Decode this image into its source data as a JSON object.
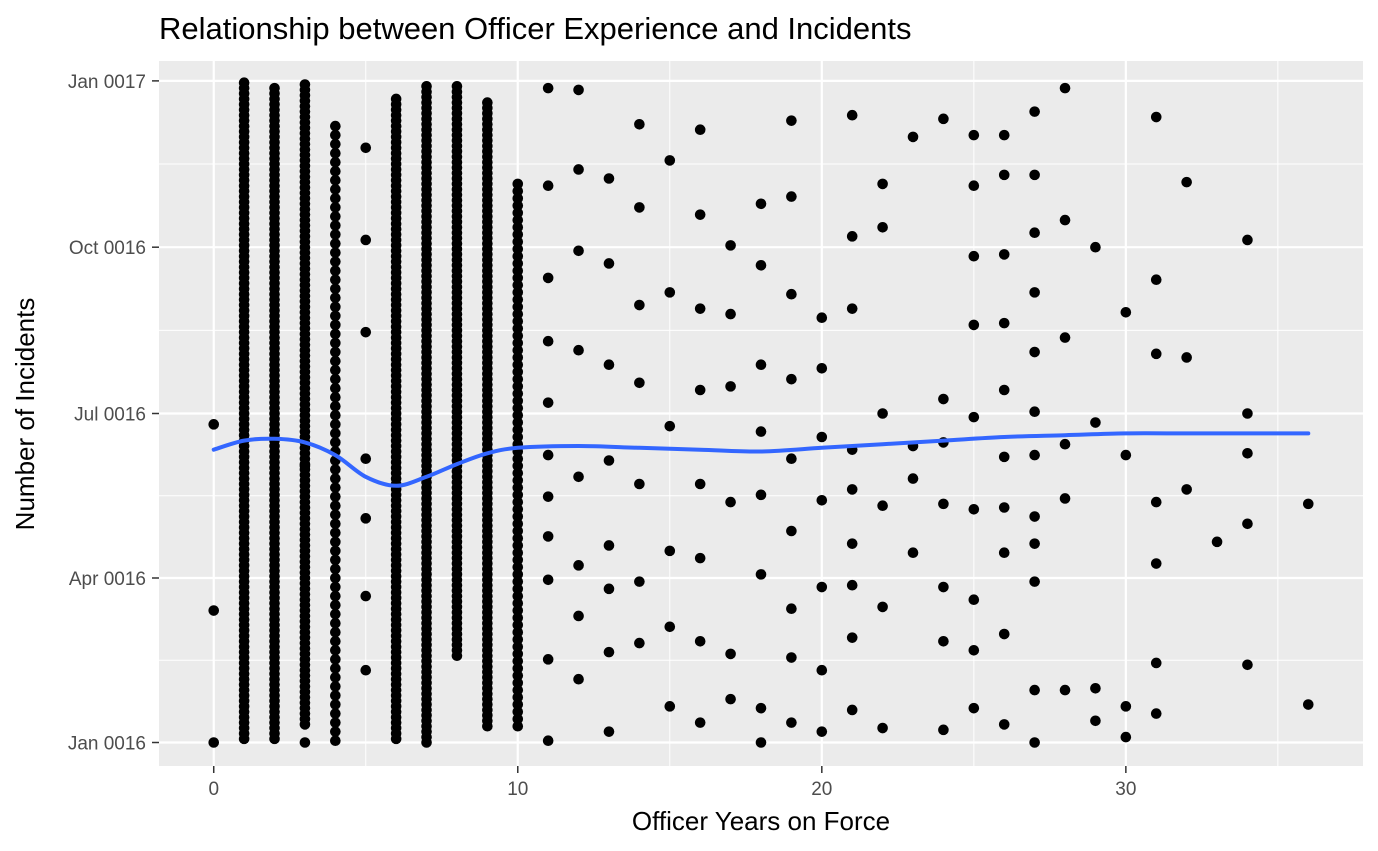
{
  "chart_data": {
    "type": "scatter",
    "title": "Relationship between Officer Experience and Incidents",
    "xlabel": "Officer Years on Force",
    "ylabel": "Number of Incidents",
    "xlim": [
      -1.8,
      37.8
    ],
    "ylim": [
      "0015-12-19",
      "0017-01-12"
    ],
    "x_ticks": [
      0,
      10,
      20,
      30
    ],
    "x_tick_labels": [
      "0",
      "10",
      "20",
      "30"
    ],
    "y_ticks": [
      "0016-01-01",
      "0016-04-01",
      "0016-07-01",
      "0016-10-01",
      "0017-01-01"
    ],
    "y_tick_labels": [
      "Jan 0016",
      "Apr 0016",
      "Jul 0016",
      "Oct 0016",
      "Jan 0017"
    ],
    "grid": true,
    "legend": "none",
    "colors": {
      "panel": "#ebebeb",
      "grid": "#ffffff",
      "points": "#000000",
      "smooth": "#3366ff"
    },
    "series": [
      {
        "type": "scatter",
        "points": [
          [
            0,
            "0016-01-01"
          ],
          [
            0,
            "0016-03-14"
          ],
          [
            0,
            "0016-06-25"
          ],
          [
            3,
            "0016-01-01"
          ],
          [
            3,
            "0016-06-02"
          ],
          [
            5,
            "0016-02-10"
          ],
          [
            5,
            "0016-03-22"
          ],
          [
            5,
            "0016-05-04"
          ],
          [
            5,
            "0016-06-06"
          ],
          [
            5,
            "0016-08-15"
          ],
          [
            5,
            "0016-10-05"
          ],
          [
            5,
            "0016-11-25"
          ],
          [
            11,
            "0016-01-02"
          ],
          [
            11,
            "0016-02-16"
          ],
          [
            11,
            "0016-03-31"
          ],
          [
            11,
            "0016-04-24"
          ],
          [
            11,
            "0016-05-16"
          ],
          [
            11,
            "0016-06-08"
          ],
          [
            11,
            "0016-07-07"
          ],
          [
            11,
            "0016-08-10"
          ],
          [
            11,
            "0016-09-14"
          ],
          [
            11,
            "0016-11-04"
          ],
          [
            11,
            "0016-12-28"
          ],
          [
            12,
            "0016-02-05"
          ],
          [
            12,
            "0016-03-11"
          ],
          [
            12,
            "0016-04-08"
          ],
          [
            12,
            "0016-05-27"
          ],
          [
            12,
            "0016-08-05"
          ],
          [
            12,
            "0016-09-29"
          ],
          [
            12,
            "0016-11-13"
          ],
          [
            12,
            "0016-12-27"
          ],
          [
            13,
            "0016-01-07"
          ],
          [
            13,
            "0016-02-20"
          ],
          [
            13,
            "0016-03-26"
          ],
          [
            13,
            "0016-04-19"
          ],
          [
            13,
            "0016-06-05"
          ],
          [
            13,
            "0016-07-28"
          ],
          [
            13,
            "0016-09-22"
          ],
          [
            13,
            "0016-11-08"
          ],
          [
            14,
            "0016-02-25"
          ],
          [
            14,
            "0016-03-30"
          ],
          [
            14,
            "0016-05-23"
          ],
          [
            14,
            "0016-07-18"
          ],
          [
            14,
            "0016-08-30"
          ],
          [
            14,
            "0016-10-23"
          ],
          [
            14,
            "0016-12-08"
          ],
          [
            15,
            "0016-01-21"
          ],
          [
            15,
            "0016-03-05"
          ],
          [
            15,
            "0016-04-16"
          ],
          [
            15,
            "0016-06-24"
          ],
          [
            15,
            "0016-09-06"
          ],
          [
            15,
            "0016-11-18"
          ],
          [
            16,
            "0016-01-12"
          ],
          [
            16,
            "0016-02-26"
          ],
          [
            16,
            "0016-04-12"
          ],
          [
            16,
            "0016-05-23"
          ],
          [
            16,
            "0016-07-14"
          ],
          [
            16,
            "0016-08-28"
          ],
          [
            16,
            "0016-10-19"
          ],
          [
            16,
            "0016-12-05"
          ],
          [
            17,
            "0016-01-25"
          ],
          [
            17,
            "0016-02-19"
          ],
          [
            17,
            "0016-05-13"
          ],
          [
            17,
            "0016-07-16"
          ],
          [
            17,
            "0016-08-25"
          ],
          [
            17,
            "0016-10-02"
          ],
          [
            18,
            "0016-01-01"
          ],
          [
            18,
            "0016-01-20"
          ],
          [
            18,
            "0016-04-03"
          ],
          [
            18,
            "0016-05-17"
          ],
          [
            18,
            "0016-06-21"
          ],
          [
            18,
            "0016-07-28"
          ],
          [
            18,
            "0016-09-21"
          ],
          [
            18,
            "0016-10-25"
          ],
          [
            19,
            "0016-01-12"
          ],
          [
            19,
            "0016-02-17"
          ],
          [
            19,
            "0016-03-15"
          ],
          [
            19,
            "0016-04-27"
          ],
          [
            19,
            "0016-06-06"
          ],
          [
            19,
            "0016-07-20"
          ],
          [
            19,
            "0016-09-05"
          ],
          [
            19,
            "0016-10-29"
          ],
          [
            19,
            "0016-12-10"
          ],
          [
            20,
            "0016-01-07"
          ],
          [
            20,
            "0016-02-10"
          ],
          [
            20,
            "0016-03-27"
          ],
          [
            20,
            "0016-05-14"
          ],
          [
            20,
            "0016-06-18"
          ],
          [
            20,
            "0016-07-26"
          ],
          [
            20,
            "0016-08-23"
          ],
          [
            21,
            "0016-01-19"
          ],
          [
            21,
            "0016-02-28"
          ],
          [
            21,
            "0016-03-28"
          ],
          [
            21,
            "0016-04-20"
          ],
          [
            21,
            "0016-05-20"
          ],
          [
            21,
            "0016-06-11"
          ],
          [
            21,
            "0016-08-28"
          ],
          [
            21,
            "0016-10-07"
          ],
          [
            21,
            "0016-12-13"
          ],
          [
            22,
            "0016-01-09"
          ],
          [
            22,
            "0016-03-16"
          ],
          [
            22,
            "0016-05-11"
          ],
          [
            22,
            "0016-07-01"
          ],
          [
            22,
            "0016-10-12"
          ],
          [
            22,
            "0016-11-05"
          ],
          [
            23,
            "0016-04-15"
          ],
          [
            23,
            "0016-05-26"
          ],
          [
            23,
            "0016-06-13"
          ],
          [
            23,
            "0016-12-01"
          ],
          [
            24,
            "0016-01-08"
          ],
          [
            24,
            "0016-02-26"
          ],
          [
            24,
            "0016-03-27"
          ],
          [
            24,
            "0016-05-12"
          ],
          [
            24,
            "0016-06-15"
          ],
          [
            24,
            "0016-07-09"
          ],
          [
            24,
            "0016-12-11"
          ],
          [
            25,
            "0016-01-20"
          ],
          [
            25,
            "0016-02-21"
          ],
          [
            25,
            "0016-03-20"
          ],
          [
            25,
            "0016-05-09"
          ],
          [
            25,
            "0016-06-29"
          ],
          [
            25,
            "0016-08-19"
          ],
          [
            25,
            "0016-09-26"
          ],
          [
            25,
            "0016-11-04"
          ],
          [
            25,
            "0016-12-02"
          ],
          [
            26,
            "0016-01-11"
          ],
          [
            26,
            "0016-03-01"
          ],
          [
            26,
            "0016-04-15"
          ],
          [
            26,
            "0016-05-10"
          ],
          [
            26,
            "0016-06-07"
          ],
          [
            26,
            "0016-07-14"
          ],
          [
            26,
            "0016-08-20"
          ],
          [
            26,
            "0016-09-27"
          ],
          [
            26,
            "0016-11-10"
          ],
          [
            26,
            "0016-12-02"
          ],
          [
            27,
            "0016-01-01"
          ],
          [
            27,
            "0016-01-30"
          ],
          [
            27,
            "0016-03-30"
          ],
          [
            27,
            "0016-04-20"
          ],
          [
            27,
            "0016-05-05"
          ],
          [
            27,
            "0016-06-08"
          ],
          [
            27,
            "0016-07-02"
          ],
          [
            27,
            "0016-08-04"
          ],
          [
            27,
            "0016-09-06"
          ],
          [
            27,
            "0016-10-09"
          ],
          [
            27,
            "0016-11-10"
          ],
          [
            27,
            "0016-12-15"
          ],
          [
            28,
            "0016-01-30"
          ],
          [
            28,
            "0016-05-15"
          ],
          [
            28,
            "0016-06-14"
          ],
          [
            28,
            "0016-08-12"
          ],
          [
            28,
            "0016-10-16"
          ],
          [
            28,
            "0016-12-28"
          ],
          [
            29,
            "0016-01-13"
          ],
          [
            29,
            "0016-01-31"
          ],
          [
            29,
            "0016-06-26"
          ],
          [
            29,
            "0016-10-01"
          ],
          [
            30,
            "0016-01-04"
          ],
          [
            30,
            "0016-01-21"
          ],
          [
            30,
            "0016-06-08"
          ],
          [
            30,
            "0016-08-26"
          ],
          [
            31,
            "0016-01-17"
          ],
          [
            31,
            "0016-02-14"
          ],
          [
            31,
            "0016-04-09"
          ],
          [
            31,
            "0016-05-13"
          ],
          [
            31,
            "0016-08-03"
          ],
          [
            31,
            "0016-09-13"
          ],
          [
            31,
            "0016-12-12"
          ],
          [
            32,
            "0016-05-20"
          ],
          [
            32,
            "0016-08-01"
          ],
          [
            32,
            "0016-11-06"
          ],
          [
            33,
            "0016-04-21"
          ],
          [
            34,
            "0016-02-13"
          ],
          [
            34,
            "0016-05-01"
          ],
          [
            34,
            "0016-06-09"
          ],
          [
            34,
            "0016-07-01"
          ],
          [
            34,
            "0016-10-05"
          ],
          [
            36,
            "0016-01-22"
          ],
          [
            36,
            "0016-05-12"
          ]
        ],
        "point_columns": [
          {
            "x": 1,
            "from": "0016-01-03",
            "to": "0016-12-31",
            "step_days": 3
          },
          {
            "x": 2,
            "from": "0016-01-03",
            "to": "0016-12-29",
            "step_days": 3
          },
          {
            "x": 3,
            "from": "0016-01-11",
            "to": "0017-01-01",
            "step_days": 3
          },
          {
            "x": 4,
            "from": "0016-01-02",
            "to": "0016-12-08",
            "step_days": 5
          },
          {
            "x": 6,
            "from": "0016-01-03",
            "to": "0016-12-24",
            "step_days": 3
          },
          {
            "x": 7,
            "from": "0016-01-01",
            "to": "0016-12-29",
            "step_days": 3
          },
          {
            "x": 8,
            "from": "0016-02-18",
            "to": "0016-12-30",
            "step_days": 3
          },
          {
            "x": 9,
            "from": "0016-01-10",
            "to": "0016-12-21",
            "step_days": 3
          },
          {
            "x": 10,
            "from": "0016-01-10",
            "to": "0016-11-06",
            "step_days": 4
          }
        ]
      },
      {
        "type": "smooth-line",
        "points": [
          [
            0,
            "0016-06-11"
          ],
          [
            1,
            "0016-06-16"
          ],
          [
            2,
            "0016-06-17"
          ],
          [
            3,
            "0016-06-15"
          ],
          [
            4,
            "0016-06-08"
          ],
          [
            5,
            "0016-05-27"
          ],
          [
            6,
            "0016-05-22"
          ],
          [
            7,
            "0016-05-27"
          ],
          [
            8,
            "0016-06-03"
          ],
          [
            9,
            "0016-06-09"
          ],
          [
            10,
            "0016-06-12"
          ],
          [
            12,
            "0016-06-13"
          ],
          [
            14,
            "0016-06-12"
          ],
          [
            16,
            "0016-06-11"
          ],
          [
            18,
            "0016-06-10"
          ],
          [
            20,
            "0016-06-12"
          ],
          [
            22,
            "0016-06-14"
          ],
          [
            24,
            "0016-06-16"
          ],
          [
            26,
            "0016-06-18"
          ],
          [
            28,
            "0016-06-19"
          ],
          [
            30,
            "0016-06-20"
          ],
          [
            32,
            "0016-06-20"
          ],
          [
            34,
            "0016-06-20"
          ],
          [
            36,
            "0016-06-20"
          ]
        ]
      }
    ]
  }
}
